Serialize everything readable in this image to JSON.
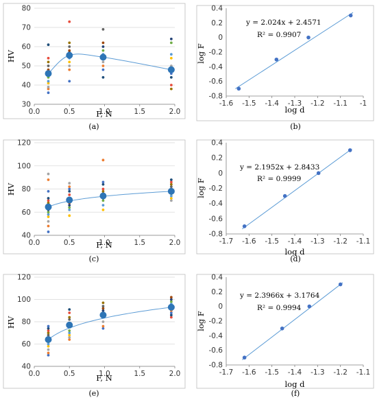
{
  "figure": {
    "colors": {
      "point": "#4472c4",
      "trend": "#5b9bd5",
      "mean": "#2e75b6",
      "scatter_palette": [
        "#4472c4",
        "#ed7d31",
        "#a5a5a5",
        "#ffc000",
        "#5b9bd5",
        "#70ad47",
        "#264478",
        "#9e480e",
        "#636363",
        "#997300",
        "#e74c3c",
        "#1f4e79"
      ]
    }
  },
  "chart_data": [
    {
      "id": "a",
      "label": "(a)",
      "type": "scatter",
      "xlabel": "F, N",
      "ylabel": "HV",
      "xlim": [
        0.0,
        2.0
      ],
      "ylim": [
        30,
        80
      ],
      "xticks": [
        "0.0",
        "0.5",
        "1.0",
        "1.5",
        "2.0"
      ],
      "yticks": [
        "30",
        "40",
        "50",
        "60",
        "70",
        "80"
      ],
      "grid": "horizontal",
      "series": [
        {
          "kind": "individual",
          "points": [
            [
              0.2,
              36
            ],
            [
              0.2,
              38
            ],
            [
              0.2,
              39
            ],
            [
              0.2,
              41
            ],
            [
              0.2,
              42
            ],
            [
              0.2,
              44
            ],
            [
              0.2,
              46
            ],
            [
              0.2,
              48
            ],
            [
              0.2,
              50
            ],
            [
              0.2,
              52
            ],
            [
              0.2,
              54
            ],
            [
              0.2,
              61
            ],
            [
              0.5,
              42
            ],
            [
              0.5,
              48
            ],
            [
              0.5,
              50
            ],
            [
              0.5,
              52
            ],
            [
              0.5,
              54
            ],
            [
              0.5,
              56
            ],
            [
              0.5,
              57
            ],
            [
              0.5,
              58
            ],
            [
              0.5,
              60
            ],
            [
              0.5,
              62
            ],
            [
              0.5,
              73
            ],
            [
              0.98,
              44
            ],
            [
              0.98,
              48
            ],
            [
              0.98,
              50
            ],
            [
              0.98,
              52
            ],
            [
              0.98,
              54
            ],
            [
              0.98,
              56
            ],
            [
              0.98,
              58
            ],
            [
              0.98,
              60
            ],
            [
              0.98,
              62
            ],
            [
              0.98,
              69
            ],
            [
              1.95,
              38
            ],
            [
              1.95,
              40
            ],
            [
              1.95,
              44
            ],
            [
              1.95,
              46
            ],
            [
              1.95,
              48
            ],
            [
              1.95,
              50
            ],
            [
              1.95,
              54
            ],
            [
              1.95,
              56
            ],
            [
              1.95,
              62
            ],
            [
              1.95,
              64
            ]
          ]
        },
        {
          "kind": "mean",
          "points": [
            [
              0.2,
              46
            ],
            [
              0.5,
              55.5
            ],
            [
              0.98,
              54.5
            ],
            [
              1.95,
              48
            ]
          ]
        }
      ],
      "trend": "smooth"
    },
    {
      "id": "b",
      "label": "(b)",
      "type": "scatter",
      "xlabel": "log d",
      "ylabel": "log F",
      "xlim": [
        -1.6,
        -1.0
      ],
      "ylim": [
        -0.8,
        0.4
      ],
      "xticks": [
        "-1.6",
        "-1.5",
        "-1.4",
        "-1.3",
        "-1.2",
        "-1.1",
        "-1"
      ],
      "yticks": [
        "-0.8",
        "-0.6",
        "-0.4",
        "-0.2",
        "0",
        "0.2",
        "0.4"
      ],
      "equation": "y = 2.024x + 2.4571",
      "r2": "R² = 0.9907",
      "grid": "none",
      "points": [
        [
          -1.545,
          -0.699
        ],
        [
          -1.38,
          -0.301
        ],
        [
          -1.24,
          0.0
        ],
        [
          -1.055,
          0.301
        ]
      ],
      "fit": {
        "slope": 2.024,
        "intercept": 2.4571,
        "xrange": [
          -1.56,
          -1.045
        ]
      }
    },
    {
      "id": "c",
      "label": "(c)",
      "type": "scatter",
      "xlabel": "F, N",
      "ylabel": "HV",
      "xlim": [
        0.0,
        2.0
      ],
      "ylim": [
        40,
        120
      ],
      "xticks": [
        "0.0",
        "0.5",
        "1.0",
        "1.5",
        "2.0"
      ],
      "yticks": [
        "40",
        "60",
        "80",
        "100",
        "120"
      ],
      "grid": "horizontal",
      "series": [
        {
          "kind": "individual",
          "points": [
            [
              0.2,
              43
            ],
            [
              0.2,
              48
            ],
            [
              0.2,
              52
            ],
            [
              0.2,
              56
            ],
            [
              0.2,
              58
            ],
            [
              0.2,
              60
            ],
            [
              0.2,
              62
            ],
            [
              0.2,
              64
            ],
            [
              0.2,
              66
            ],
            [
              0.2,
              68
            ],
            [
              0.2,
              70
            ],
            [
              0.2,
              72
            ],
            [
              0.2,
              78
            ],
            [
              0.2,
              88
            ],
            [
              0.2,
              93
            ],
            [
              0.5,
              57
            ],
            [
              0.5,
              62
            ],
            [
              0.5,
              64
            ],
            [
              0.5,
              66
            ],
            [
              0.5,
              68
            ],
            [
              0.5,
              70
            ],
            [
              0.5,
              72
            ],
            [
              0.5,
              75
            ],
            [
              0.5,
              78
            ],
            [
              0.5,
              80
            ],
            [
              0.5,
              82
            ],
            [
              0.5,
              85
            ],
            [
              0.98,
              62
            ],
            [
              0.98,
              66
            ],
            [
              0.98,
              70
            ],
            [
              0.98,
              72
            ],
            [
              0.98,
              74
            ],
            [
              0.98,
              76
            ],
            [
              0.98,
              78
            ],
            [
              0.98,
              80
            ],
            [
              0.98,
              84
            ],
            [
              0.98,
              86
            ],
            [
              0.98,
              105
            ],
            [
              1.95,
              70
            ],
            [
              1.95,
              72
            ],
            [
              1.95,
              74
            ],
            [
              1.95,
              76
            ],
            [
              1.95,
              78
            ],
            [
              1.95,
              80
            ],
            [
              1.95,
              82
            ],
            [
              1.95,
              84
            ],
            [
              1.95,
              86
            ],
            [
              1.95,
              88
            ]
          ]
        },
        {
          "kind": "mean",
          "points": [
            [
              0.2,
              64.5
            ],
            [
              0.5,
              70.5
            ],
            [
              0.98,
              74
            ],
            [
              1.95,
              78
            ]
          ]
        }
      ],
      "trend": "power"
    },
    {
      "id": "d",
      "label": "(d)",
      "type": "scatter",
      "xlabel": "log d",
      "ylabel": "log F",
      "xlim": [
        -1.7,
        -1.1
      ],
      "ylim": [
        -0.8,
        0.4
      ],
      "xticks": [
        "-1.7",
        "-1.6",
        "-1.5",
        "-1.4",
        "-1.3",
        "-1.2",
        "-1.1"
      ],
      "yticks": [
        "-0.8",
        "-0.6",
        "-0.4",
        "-0.2",
        "0",
        "0.2",
        "0.4"
      ],
      "equation": "y = 2.1952x + 2.8433",
      "r2": "R² = 0.9999",
      "grid": "none",
      "points": [
        [
          -1.62,
          -0.699
        ],
        [
          -1.443,
          -0.301
        ],
        [
          -1.296,
          0.0
        ],
        [
          -1.158,
          0.301
        ]
      ],
      "fit": {
        "slope": 2.1952,
        "intercept": 2.8433,
        "xrange": [
          -1.63,
          -1.15
        ]
      }
    },
    {
      "id": "e",
      "label": "(e)",
      "type": "scatter",
      "xlabel": "F, N",
      "ylabel": "HV",
      "xlim": [
        0.0,
        2.0
      ],
      "ylim": [
        40,
        120
      ],
      "xticks": [
        "0.0",
        "0.5",
        "1.0",
        "1.5",
        "2.0"
      ],
      "yticks": [
        "40",
        "60",
        "80",
        "100",
        "120"
      ],
      "grid": "horizontal",
      "series": [
        {
          "kind": "individual",
          "points": [
            [
              0.2,
              50
            ],
            [
              0.2,
              52
            ],
            [
              0.2,
              55
            ],
            [
              0.2,
              58
            ],
            [
              0.2,
              60
            ],
            [
              0.2,
              62
            ],
            [
              0.2,
              64
            ],
            [
              0.2,
              66
            ],
            [
              0.2,
              68
            ],
            [
              0.2,
              70
            ],
            [
              0.2,
              72
            ],
            [
              0.2,
              74
            ],
            [
              0.2,
              76
            ],
            [
              0.5,
              64
            ],
            [
              0.5,
              66
            ],
            [
              0.5,
              68
            ],
            [
              0.5,
              70
            ],
            [
              0.5,
              72
            ],
            [
              0.5,
              76
            ],
            [
              0.5,
              78
            ],
            [
              0.5,
              82
            ],
            [
              0.5,
              84
            ],
            [
              0.5,
              88
            ],
            [
              0.5,
              91
            ],
            [
              0.98,
              74
            ],
            [
              0.98,
              76
            ],
            [
              0.98,
              80
            ],
            [
              0.98,
              84
            ],
            [
              0.98,
              86
            ],
            [
              0.98,
              88
            ],
            [
              0.98,
              90
            ],
            [
              0.98,
              92
            ],
            [
              0.98,
              94
            ],
            [
              0.98,
              97
            ],
            [
              1.95,
              84
            ],
            [
              1.95,
              86
            ],
            [
              1.95,
              88
            ],
            [
              1.95,
              90
            ],
            [
              1.95,
              92
            ],
            [
              1.95,
              94
            ],
            [
              1.95,
              96
            ],
            [
              1.95,
              98
            ],
            [
              1.95,
              100
            ],
            [
              1.95,
              102
            ]
          ]
        },
        {
          "kind": "mean",
          "points": [
            [
              0.2,
              64
            ],
            [
              0.5,
              77
            ],
            [
              0.98,
              86
            ],
            [
              1.95,
              93
            ]
          ]
        }
      ],
      "trend": "power"
    },
    {
      "id": "f",
      "label": "(f)",
      "type": "scatter",
      "xlabel": "log d",
      "ylabel": "log F",
      "xlim": [
        -1.7,
        -1.1
      ],
      "ylim": [
        -0.8,
        0.4
      ],
      "xticks": [
        "-1.7",
        "-1.6",
        "-1.5",
        "-1.4",
        "-1.3",
        "-1.2",
        "-1.1"
      ],
      "yticks": [
        "-0.8",
        "-0.6",
        "-0.4",
        "-0.2",
        "0",
        "0.2",
        "0.4"
      ],
      "equation": "y = 2.3966x + 3.1764",
      "r2": "R² = 0.9994",
      "grid": "none",
      "points": [
        [
          -1.62,
          -0.699
        ],
        [
          -1.455,
          -0.301
        ],
        [
          -1.336,
          0.0
        ],
        [
          -1.2,
          0.301
        ]
      ],
      "fit": {
        "slope": 2.3966,
        "intercept": 3.1764,
        "xrange": [
          -1.63,
          -1.19
        ]
      }
    }
  ]
}
